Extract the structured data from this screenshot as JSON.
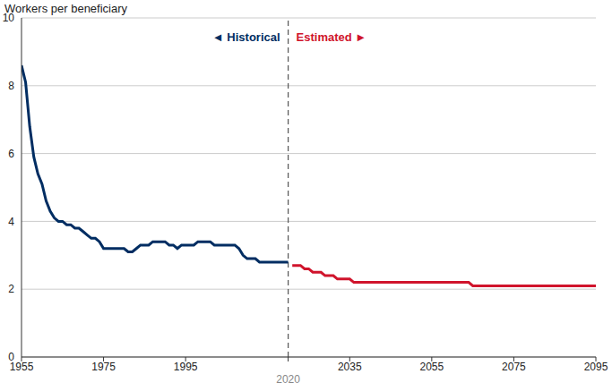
{
  "chart_data": {
    "type": "line",
    "y_label": "Workers per beneficiary",
    "x": [
      1955,
      1956,
      1957,
      1958,
      1959,
      1960,
      1961,
      1962,
      1963,
      1964,
      1965,
      1966,
      1967,
      1968,
      1969,
      1970,
      1971,
      1972,
      1973,
      1974,
      1975,
      1976,
      1977,
      1978,
      1979,
      1980,
      1981,
      1982,
      1983,
      1984,
      1985,
      1986,
      1987,
      1988,
      1989,
      1990,
      1991,
      1992,
      1993,
      1994,
      1995,
      1996,
      1997,
      1998,
      1999,
      2000,
      2001,
      2002,
      2003,
      2004,
      2005,
      2006,
      2007,
      2008,
      2009,
      2010,
      2011,
      2012,
      2013,
      2014,
      2015,
      2016,
      2017,
      2018,
      2019,
      2020,
      2021,
      2022,
      2023,
      2024,
      2025,
      2026,
      2027,
      2028,
      2029,
      2030,
      2031,
      2032,
      2033,
      2034,
      2035,
      2036,
      2037,
      2038,
      2039,
      2040,
      2041,
      2042,
      2043,
      2044,
      2045,
      2046,
      2047,
      2048,
      2049,
      2050,
      2051,
      2052,
      2053,
      2054,
      2055,
      2056,
      2057,
      2058,
      2059,
      2060,
      2061,
      2062,
      2063,
      2064,
      2065,
      2066,
      2067,
      2068,
      2069,
      2070,
      2071,
      2072,
      2073,
      2074,
      2075,
      2076,
      2077,
      2078,
      2079,
      2080,
      2081,
      2082,
      2083,
      2084,
      2085,
      2086,
      2087,
      2088,
      2089,
      2090,
      2091,
      2092,
      2093,
      2094,
      2095
    ],
    "series": [
      {
        "name": "◄ Historical",
        "color": "#002d62",
        "values": [
          8.6,
          8.1,
          6.8,
          5.9,
          5.4,
          5.1,
          4.6,
          4.3,
          4.1,
          4.0,
          4.0,
          3.9,
          3.9,
          3.8,
          3.8,
          3.7,
          3.6,
          3.5,
          3.5,
          3.4,
          3.2,
          3.2,
          3.2,
          3.2,
          3.2,
          3.2,
          3.1,
          3.1,
          3.2,
          3.3,
          3.3,
          3.3,
          3.4,
          3.4,
          3.4,
          3.4,
          3.3,
          3.3,
          3.2,
          3.3,
          3.3,
          3.3,
          3.3,
          3.4,
          3.4,
          3.4,
          3.4,
          3.3,
          3.3,
          3.3,
          3.3,
          3.3,
          3.3,
          3.2,
          3.0,
          2.9,
          2.9,
          2.9,
          2.8,
          2.8,
          2.8,
          2.8,
          2.8,
          2.8,
          2.8,
          2.8,
          null,
          null,
          null,
          null,
          null,
          null,
          null,
          null,
          null,
          null,
          null,
          null,
          null,
          null,
          null,
          null,
          null,
          null,
          null,
          null,
          null,
          null,
          null,
          null,
          null,
          null,
          null,
          null,
          null,
          null,
          null,
          null,
          null,
          null,
          null,
          null,
          null,
          null,
          null,
          null,
          null,
          null,
          null,
          null,
          null,
          null,
          null,
          null,
          null,
          null,
          null,
          null,
          null,
          null,
          null,
          null,
          null,
          null,
          null,
          null,
          null,
          null,
          null,
          null,
          null,
          null,
          null,
          null,
          null,
          null,
          null,
          null,
          null,
          null,
          null
        ]
      },
      {
        "name": "Estimated ►",
        "color": "#d0142c",
        "values": [
          null,
          null,
          null,
          null,
          null,
          null,
          null,
          null,
          null,
          null,
          null,
          null,
          null,
          null,
          null,
          null,
          null,
          null,
          null,
          null,
          null,
          null,
          null,
          null,
          null,
          null,
          null,
          null,
          null,
          null,
          null,
          null,
          null,
          null,
          null,
          null,
          null,
          null,
          null,
          null,
          null,
          null,
          null,
          null,
          null,
          null,
          null,
          null,
          null,
          null,
          null,
          null,
          null,
          null,
          null,
          null,
          null,
          null,
          null,
          null,
          null,
          null,
          null,
          null,
          null,
          null,
          2.7,
          2.7,
          2.7,
          2.6,
          2.6,
          2.5,
          2.5,
          2.5,
          2.4,
          2.4,
          2.4,
          2.3,
          2.3,
          2.3,
          2.3,
          2.2,
          2.2,
          2.2,
          2.2,
          2.2,
          2.2,
          2.2,
          2.2,
          2.2,
          2.2,
          2.2,
          2.2,
          2.2,
          2.2,
          2.2,
          2.2,
          2.2,
          2.2,
          2.2,
          2.2,
          2.2,
          2.2,
          2.2,
          2.2,
          2.2,
          2.2,
          2.2,
          2.2,
          2.2,
          2.1,
          2.1,
          2.1,
          2.1,
          2.1,
          2.1,
          2.1,
          2.1,
          2.1,
          2.1,
          2.1,
          2.1,
          2.1,
          2.1,
          2.1,
          2.1,
          2.1,
          2.1,
          2.1,
          2.1,
          2.1,
          2.1,
          2.1,
          2.1,
          2.1,
          2.1,
          2.1,
          2.1,
          2.1,
          2.1,
          2.1
        ]
      }
    ],
    "xlim": [
      1955,
      2095
    ],
    "xticks": [
      1955,
      1975,
      1995,
      2020,
      2035,
      2055,
      2075,
      2095
    ],
    "ylim": [
      0,
      10
    ],
    "yticks": [
      0,
      2,
      4,
      6,
      8,
      10
    ],
    "grid": true
  }
}
